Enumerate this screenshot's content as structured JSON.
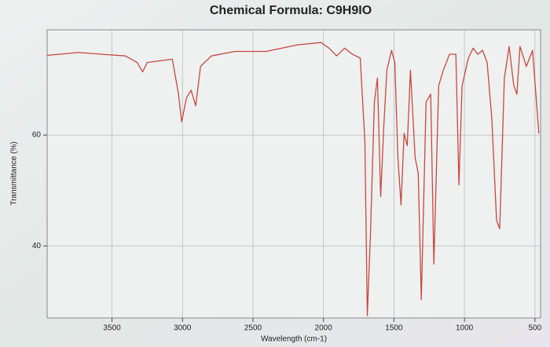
{
  "chart_data": {
    "type": "line",
    "title": "Chemical Formula: C9H9IO",
    "x_label": "Wavelength (cm-1)",
    "y_label": "Transmittance (%)",
    "x": [
      3961,
      3739,
      3572,
      3406,
      3322,
      3283,
      3250,
      3072,
      3028,
      3006,
      2972,
      2939,
      2906,
      2872,
      2794,
      2628,
      2406,
      2183,
      2017,
      1961,
      1906,
      1850,
      1794,
      1739,
      1706,
      1689,
      1667,
      1639,
      1617,
      1594,
      1572,
      1550,
      1517,
      1494,
      1472,
      1450,
      1428,
      1406,
      1383,
      1350,
      1328,
      1306,
      1272,
      1239,
      1217,
      1183,
      1150,
      1106,
      1061,
      1039,
      1017,
      972,
      939,
      906,
      872,
      839,
      806,
      772,
      750,
      717,
      683,
      650,
      628,
      606,
      561,
      517,
      472
    ],
    "values": [
      74.4,
      74.9,
      74.6,
      74.3,
      73.1,
      71.4,
      73.1,
      73.7,
      67.4,
      62.4,
      66.7,
      68.1,
      65.3,
      72.4,
      74.3,
      75.1,
      75.1,
      76.3,
      76.7,
      75.7,
      74.3,
      75.7,
      74.6,
      73.9,
      58.9,
      27.4,
      41.7,
      66,
      70.3,
      48.9,
      61.7,
      71.7,
      75.3,
      73.1,
      56,
      47.4,
      60.3,
      58.1,
      71.7,
      56,
      53.1,
      30.3,
      66,
      67.4,
      36.7,
      68.9,
      71.7,
      74.6,
      74.6,
      51,
      68.9,
      73.9,
      75.7,
      74.6,
      75.3,
      73.1,
      63.1,
      44.6,
      43.1,
      70.3,
      76,
      68.9,
      67.4,
      76,
      72.4,
      75.3,
      60.3
    ],
    "color": "#c8473f",
    "xlim": [
      3960,
      460
    ],
    "xticks": [
      3500,
      3000,
      2500,
      2000,
      1500,
      1000,
      500
    ],
    "ylim": [
      27,
      79
    ],
    "yticks": [
      40,
      60
    ],
    "grid": true
  }
}
